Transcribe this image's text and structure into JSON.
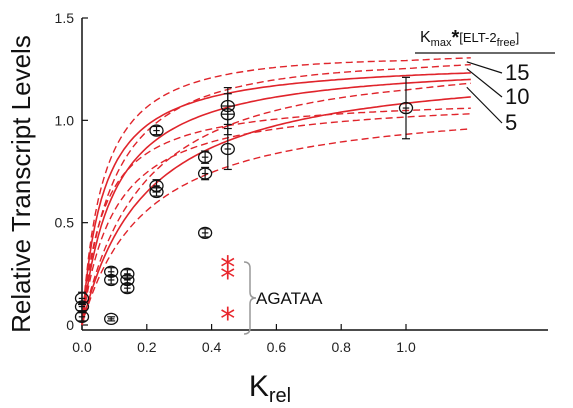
{
  "chart_data": {
    "type": "scatter",
    "xlabel": {
      "base": "K",
      "sub": "rel"
    },
    "ylabel": "Relative Transcript Levels",
    "xlim": [
      0,
      1.2
    ],
    "ylim": [
      0,
      1.5
    ],
    "x_ticks": [
      "0.0",
      "0.2",
      "0.4",
      "0.6",
      "0.8",
      "1.0"
    ],
    "x_tick_values": [
      0,
      0.2,
      0.4,
      0.6,
      0.8,
      1.0
    ],
    "y_ticks": [
      "0",
      "0.5",
      "1.0",
      "1.5"
    ],
    "y_tick_values": [
      0,
      0.5,
      1.0,
      1.5
    ],
    "legend_title": {
      "k": "K",
      "max": "max",
      "star": "*",
      "elt": "[ELT-2",
      "free": "free",
      "close": "]"
    },
    "curves": [
      {
        "label": "15",
        "k": 15,
        "solid_color": "#e0242b",
        "band": 0.1
      },
      {
        "label": "10",
        "k": 10,
        "solid_color": "#e0242b",
        "band": 0.1
      },
      {
        "label": "5",
        "k": 5,
        "solid_color": "#e0242b",
        "band": 0.1
      }
    ],
    "points": [
      {
        "x": 0.0,
        "y": 0.13,
        "xerr": 0.01,
        "yerr": 0.03
      },
      {
        "x": 0.0,
        "y": 0.09,
        "xerr": 0.01,
        "yerr": 0.02
      },
      {
        "x": 0.0,
        "y": 0.04,
        "xerr": 0.01,
        "yerr": 0.02
      },
      {
        "x": 0.09,
        "y": 0.26,
        "xerr": 0.01,
        "yerr": 0.02
      },
      {
        "x": 0.09,
        "y": 0.22,
        "xerr": 0.01,
        "yerr": 0.02
      },
      {
        "x": 0.09,
        "y": 0.03,
        "xerr": 0.01,
        "yerr": 0.01
      },
      {
        "x": 0.14,
        "y": 0.25,
        "xerr": 0.01,
        "yerr": 0.02
      },
      {
        "x": 0.14,
        "y": 0.22,
        "xerr": 0.01,
        "yerr": 0.02
      },
      {
        "x": 0.14,
        "y": 0.18,
        "xerr": 0.01,
        "yerr": 0.02
      },
      {
        "x": 0.23,
        "y": 0.95,
        "xerr": 0.01,
        "yerr": 0.02
      },
      {
        "x": 0.23,
        "y": 0.68,
        "xerr": 0.01,
        "yerr": 0.03
      },
      {
        "x": 0.23,
        "y": 0.65,
        "xerr": 0.01,
        "yerr": 0.02
      },
      {
        "x": 0.38,
        "y": 0.82,
        "xerr": 0.01,
        "yerr": 0.03
      },
      {
        "x": 0.38,
        "y": 0.74,
        "xerr": 0.01,
        "yerr": 0.03
      },
      {
        "x": 0.38,
        "y": 0.45,
        "xerr": 0.01,
        "yerr": 0.02
      },
      {
        "x": 0.45,
        "y": 1.07,
        "xerr": 0.02,
        "yerr": 0.09
      },
      {
        "x": 0.45,
        "y": 1.03,
        "xerr": 0.02,
        "yerr": 0.1
      },
      {
        "x": 0.45,
        "y": 0.86,
        "xerr": 0.01,
        "yerr": 0.1
      },
      {
        "x": 1.0,
        "y": 1.06,
        "xerr": 0.01,
        "yerr": 0.15
      }
    ],
    "star_points": [
      {
        "x": 0.45,
        "y": 0.29
      },
      {
        "x": 0.45,
        "y": 0.24
      },
      {
        "x": 0.45,
        "y": 0.04
      }
    ],
    "star_color": "#e8262c",
    "annotation": "AGATAA"
  }
}
